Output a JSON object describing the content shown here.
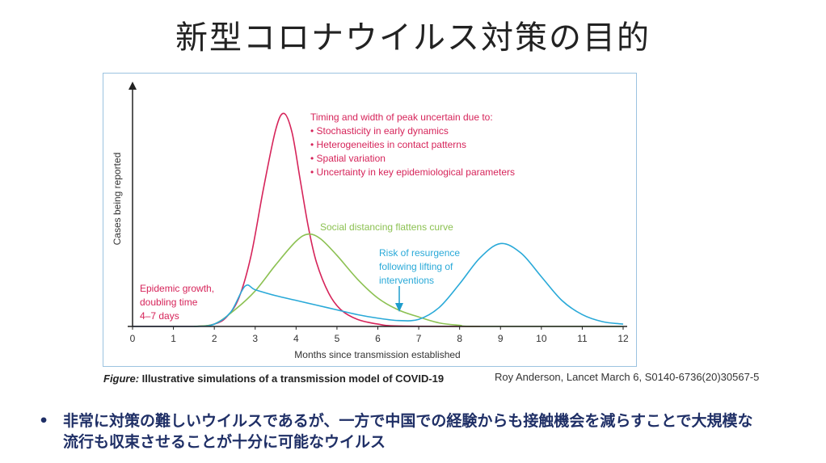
{
  "slide": {
    "title": "新型コロナウイルス対策の目的",
    "caption_prefix": "Figure:",
    "caption": " Illustrative simulations of a transmission model of COVID-19",
    "citation": "Roy Anderson, Lancet March 6, S0140-6736(20)30567-5",
    "bullet_marker": "•",
    "bullet_text": "非常に対策の難しいウイルスであるが、一方で中国での経験からも接触機会を減らすことで大規模な流行も収束させることが十分に可能なウイルス"
  },
  "chart_data": {
    "type": "line",
    "xlabel": "Months since transmission established",
    "ylabel": "Cases being reported",
    "xlim": [
      0,
      12
    ],
    "ylim": [
      0,
      100
    ],
    "xticks": [
      "0",
      "1",
      "2",
      "3",
      "4",
      "5",
      "6",
      "7",
      "8",
      "9",
      "10",
      "11",
      "12"
    ],
    "grid": false,
    "colors": {
      "red": "#d6245a",
      "green": "#8cc152",
      "blue": "#29a9d8"
    },
    "series": [
      {
        "key": "red",
        "x": [
          0,
          1.5,
          2,
          2.3,
          2.6,
          2.9,
          3.2,
          3.5,
          3.7,
          3.9,
          4.1,
          4.3,
          4.5,
          4.8,
          5.1,
          5.5,
          6,
          6.5,
          8.5
        ],
        "y": [
          0,
          0,
          1,
          4,
          12,
          30,
          58,
          83,
          90,
          82,
          62,
          42,
          27,
          14,
          7,
          3,
          1,
          0.2,
          0
        ]
      },
      {
        "key": "green",
        "x": [
          1.5,
          2,
          2.5,
          3,
          3.5,
          4,
          4.3,
          4.6,
          5,
          5.5,
          6,
          6.5,
          7,
          7.5,
          8,
          8.5,
          12
        ],
        "y": [
          0,
          1,
          7,
          15,
          26,
          36,
          39,
          37,
          30,
          20,
          12,
          7,
          4,
          1.5,
          0.5,
          0,
          0
        ]
      },
      {
        "key": "blue",
        "x": [
          0,
          1.5,
          2,
          2.4,
          2.75,
          3,
          3.5,
          4,
          4.5,
          5,
          5.5,
          6,
          6.5,
          7,
          7.5,
          8,
          8.5,
          9,
          9.5,
          10,
          10.5,
          11,
          11.5,
          12
        ],
        "y": [
          0,
          0,
          1,
          6,
          17,
          15.5,
          13,
          11,
          9,
          7,
          5,
          3.5,
          2.5,
          3,
          8,
          18,
          29,
          35,
          31,
          21,
          11,
          5,
          2,
          1
        ]
      }
    ],
    "annotations": {
      "uncertainty_title": "Timing and width of peak uncertain due to:",
      "uncertainty_items": [
        "• Stochasticity in early dynamics",
        "• Heterogeneities in contact patterns",
        "• Spatial variation",
        "• Uncertainty in key epidemiological parameters"
      ],
      "distancing": "Social distancing flattens curve",
      "resurgence": [
        "Risk of resurgence",
        "following lifting of",
        "interventions"
      ],
      "growth": [
        "Epidemic growth,",
        "doubling time",
        "4–7 days"
      ]
    }
  }
}
